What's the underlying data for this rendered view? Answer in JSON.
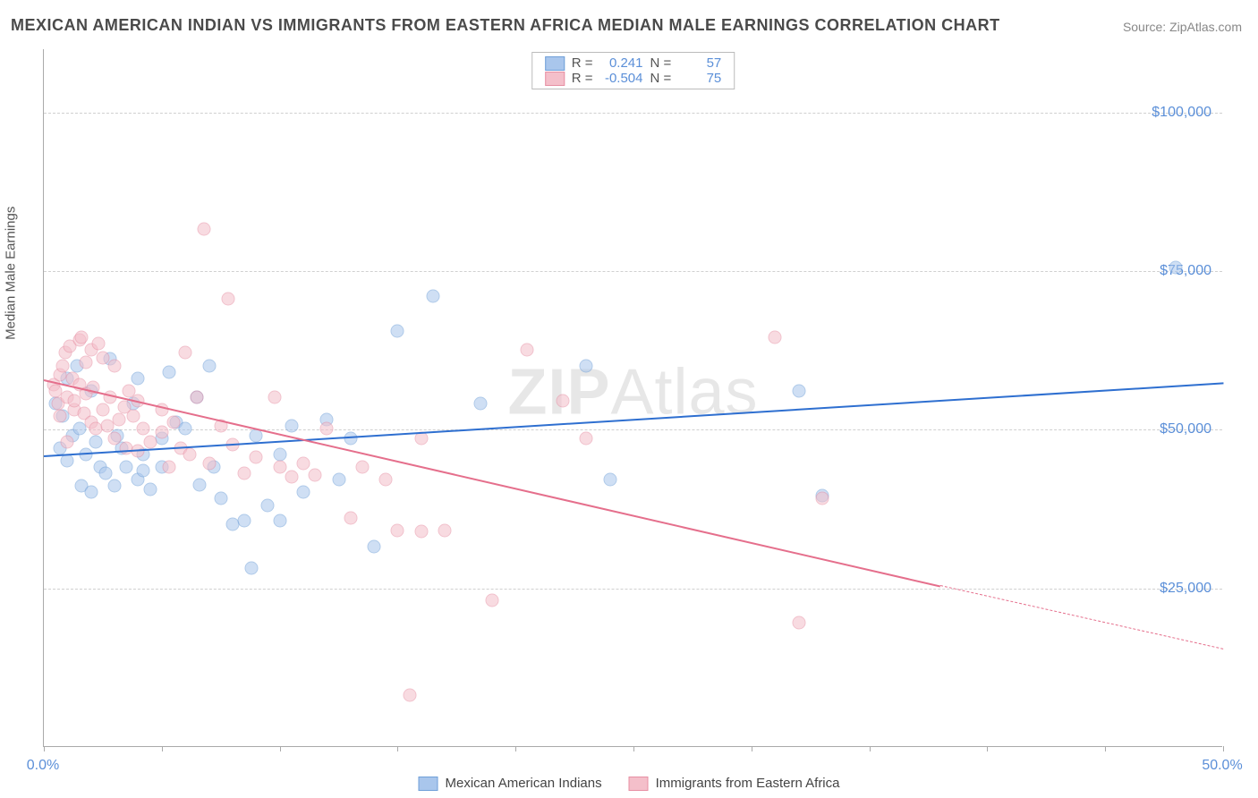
{
  "title": "MEXICAN AMERICAN INDIAN VS IMMIGRANTS FROM EASTERN AFRICA MEDIAN MALE EARNINGS CORRELATION CHART",
  "source": "Source: ZipAtlas.com",
  "watermark_bold": "ZIP",
  "watermark_rest": "Atlas",
  "y_axis_label": "Median Male Earnings",
  "chart": {
    "type": "scatter",
    "xlim": [
      0,
      50
    ],
    "ylim": [
      0,
      110000
    ],
    "x_ticks": [
      0,
      5,
      10,
      15,
      20,
      25,
      30,
      35,
      40,
      45,
      50
    ],
    "x_tick_labels": {
      "0": "0.0%",
      "50": "50.0%"
    },
    "y_gridlines": [
      25000,
      50000,
      75000,
      100000
    ],
    "y_tick_labels": {
      "25000": "$25,000",
      "50000": "$50,000",
      "75000": "$75,000",
      "100000": "$100,000"
    },
    "background_color": "#ffffff",
    "grid_color": "#d0d0d0",
    "axis_color": "#aaaaaa",
    "marker_radius": 7.5,
    "marker_opacity": 0.55,
    "series": [
      {
        "name": "Mexican American Indians",
        "color_fill": "#a9c6ec",
        "color_stroke": "#6f9fd8",
        "R": "0.241",
        "N": "57",
        "trend": {
          "x1": 0,
          "y1": 46000,
          "x2": 50,
          "y2": 57500,
          "color": "#2e6fd0",
          "width": 2
        },
        "points": [
          [
            0.5,
            54000
          ],
          [
            0.7,
            47000
          ],
          [
            0.8,
            52000
          ],
          [
            1.0,
            58000
          ],
          [
            1.0,
            45000
          ],
          [
            1.2,
            49000
          ],
          [
            1.4,
            60000
          ],
          [
            1.5,
            50000
          ],
          [
            1.6,
            41000
          ],
          [
            1.8,
            46000
          ],
          [
            2.0,
            56000
          ],
          [
            2.0,
            40000
          ],
          [
            2.2,
            48000
          ],
          [
            2.4,
            44000
          ],
          [
            2.6,
            43000
          ],
          [
            2.8,
            61000
          ],
          [
            3.0,
            41000
          ],
          [
            3.1,
            49000
          ],
          [
            3.3,
            47000
          ],
          [
            3.5,
            44000
          ],
          [
            3.8,
            54000
          ],
          [
            4.0,
            42000
          ],
          [
            4.0,
            58000
          ],
          [
            4.2,
            46000
          ],
          [
            4.2,
            43500
          ],
          [
            4.5,
            40500
          ],
          [
            5.0,
            48500
          ],
          [
            5.0,
            44000
          ],
          [
            5.3,
            59000
          ],
          [
            5.6,
            51000
          ],
          [
            6.0,
            50000
          ],
          [
            6.5,
            55000
          ],
          [
            6.6,
            41200
          ],
          [
            7.0,
            60000
          ],
          [
            7.2,
            44000
          ],
          [
            7.5,
            39000
          ],
          [
            8.0,
            35000
          ],
          [
            8.5,
            35500
          ],
          [
            8.8,
            28000
          ],
          [
            9.0,
            49000
          ],
          [
            9.5,
            38000
          ],
          [
            10.0,
            46000
          ],
          [
            10.0,
            35500
          ],
          [
            10.5,
            50500
          ],
          [
            11.0,
            40000
          ],
          [
            12.0,
            51500
          ],
          [
            12.5,
            42000
          ],
          [
            13.0,
            48500
          ],
          [
            14.0,
            31500
          ],
          [
            15.0,
            65500
          ],
          [
            16.5,
            71000
          ],
          [
            18.5,
            54000
          ],
          [
            23.0,
            60000
          ],
          [
            24.0,
            42000
          ],
          [
            32.0,
            56000
          ],
          [
            33.0,
            39500
          ],
          [
            48.0,
            75500
          ]
        ]
      },
      {
        "name": "Immigrants from Eastern Africa",
        "color_fill": "#f4bfca",
        "color_stroke": "#e78fa3",
        "R": "-0.504",
        "N": "75",
        "trend": {
          "x1": 0,
          "y1": 58000,
          "x2": 38,
          "y2": 25500,
          "color": "#e56f8c",
          "width": 2,
          "dash_x2": 50,
          "dash_y2": 15500
        },
        "points": [
          [
            0.4,
            57000
          ],
          [
            0.5,
            56000
          ],
          [
            0.6,
            54000
          ],
          [
            0.7,
            58500
          ],
          [
            0.7,
            52000
          ],
          [
            0.8,
            60000
          ],
          [
            0.9,
            62000
          ],
          [
            1.0,
            55000
          ],
          [
            1.0,
            48000
          ],
          [
            1.1,
            63000
          ],
          [
            1.2,
            58000
          ],
          [
            1.3,
            53000
          ],
          [
            1.3,
            54500
          ],
          [
            1.5,
            64000
          ],
          [
            1.5,
            57000
          ],
          [
            1.6,
            64500
          ],
          [
            1.7,
            52500
          ],
          [
            1.8,
            60500
          ],
          [
            1.8,
            55500
          ],
          [
            2.0,
            62500
          ],
          [
            2.0,
            51000
          ],
          [
            2.1,
            56500
          ],
          [
            2.2,
            50000
          ],
          [
            2.3,
            63500
          ],
          [
            2.5,
            61200
          ],
          [
            2.5,
            53000
          ],
          [
            2.7,
            50500
          ],
          [
            2.8,
            55000
          ],
          [
            3.0,
            60000
          ],
          [
            3.0,
            48500
          ],
          [
            3.2,
            51500
          ],
          [
            3.4,
            53500
          ],
          [
            3.5,
            47000
          ],
          [
            3.6,
            56000
          ],
          [
            3.8,
            52000
          ],
          [
            4.0,
            54500
          ],
          [
            4.0,
            46500
          ],
          [
            4.2,
            50000
          ],
          [
            4.5,
            48000
          ],
          [
            5.0,
            49500
          ],
          [
            5.0,
            53000
          ],
          [
            5.3,
            44000
          ],
          [
            5.5,
            51000
          ],
          [
            5.8,
            47000
          ],
          [
            6.0,
            62000
          ],
          [
            6.2,
            46000
          ],
          [
            6.5,
            55000
          ],
          [
            6.8,
            81500
          ],
          [
            7.0,
            44500
          ],
          [
            7.5,
            50500
          ],
          [
            7.8,
            70500
          ],
          [
            8.0,
            47500
          ],
          [
            8.5,
            43000
          ],
          [
            9.0,
            45500
          ],
          [
            9.8,
            55000
          ],
          [
            10.0,
            44000
          ],
          [
            10.5,
            42500
          ],
          [
            11.0,
            44500
          ],
          [
            11.5,
            42700
          ],
          [
            12.0,
            50000
          ],
          [
            13.0,
            36000
          ],
          [
            13.5,
            44000
          ],
          [
            14.5,
            42000
          ],
          [
            15.0,
            34000
          ],
          [
            15.5,
            8000
          ],
          [
            16.0,
            48500
          ],
          [
            16.0,
            33800
          ],
          [
            17.0,
            34000
          ],
          [
            19.0,
            23000
          ],
          [
            20.5,
            62500
          ],
          [
            22.0,
            54500
          ],
          [
            23.0,
            48500
          ],
          [
            31.0,
            64500
          ],
          [
            32.0,
            19500
          ],
          [
            33.0,
            39000
          ]
        ]
      }
    ]
  },
  "legend_stats_label_R": "R =",
  "legend_stats_label_N": "N ="
}
